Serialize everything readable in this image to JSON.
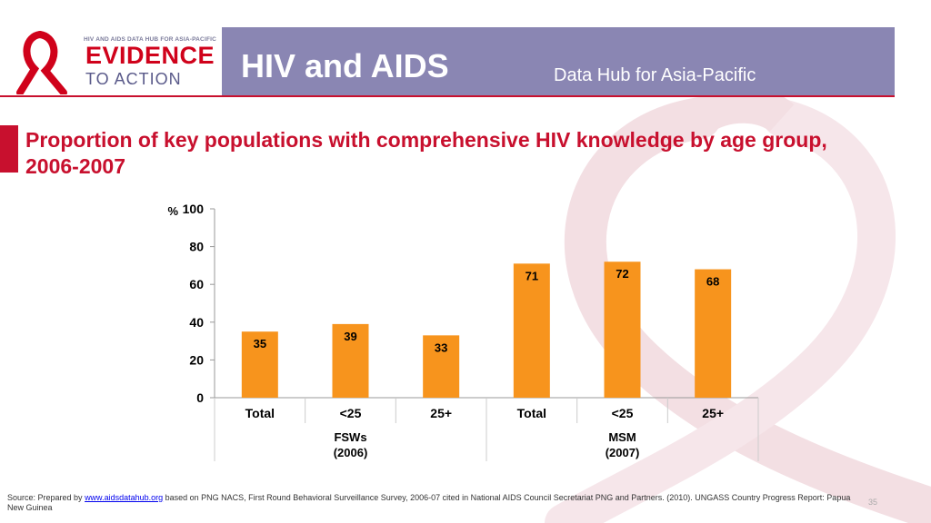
{
  "header": {
    "logo_top_text": "HIV AND AIDS DATA HUB FOR ASIA-PACIFIC",
    "logo_evidence": "EVIDENCE",
    "logo_action": "TO ACTION",
    "title": "HIV and AIDS",
    "subtitle": "Data Hub for Asia-Pacific"
  },
  "colors": {
    "bar": "#f7941d",
    "title": "#c8102e",
    "header_bg": "#8a86b3"
  },
  "chart_data": {
    "type": "bar",
    "title": "Proportion of key populations with comprehensive HIV knowledge by age group, 2006-2007",
    "ylabel": "%",
    "ylim": [
      0,
      100
    ],
    "yticks": [
      0,
      20,
      40,
      60,
      80,
      100
    ],
    "categories": [
      "Total",
      "<25",
      "25+",
      "Total",
      "<25",
      "25+"
    ],
    "groups": [
      {
        "label": "FSWs (2006)",
        "line1": "FSWs",
        "line2": "(2006)",
        "span": [
          0,
          2
        ]
      },
      {
        "label": "MSM (2007)",
        "line1": "MSM",
        "line2": "(2007)",
        "span": [
          3,
          5
        ]
      }
    ],
    "values": [
      35,
      39,
      33,
      71,
      72,
      68
    ],
    "data_labels": [
      "35",
      "39",
      "33",
      "71",
      "72",
      "68"
    ],
    "grid": false,
    "legend": "none"
  },
  "footer": {
    "source_prefix": "Source: Prepared by",
    "source_link": "www.aidsdatahub.org",
    "source_rest": "based on PNG NACS, First Round Behavioral Surveillance Survey, 2006-07 cited in National AIDS Council Secretariat PNG and Partners. (2010). UNGASS Country Progress Report: Papua New Guinea",
    "page_number": "35"
  }
}
